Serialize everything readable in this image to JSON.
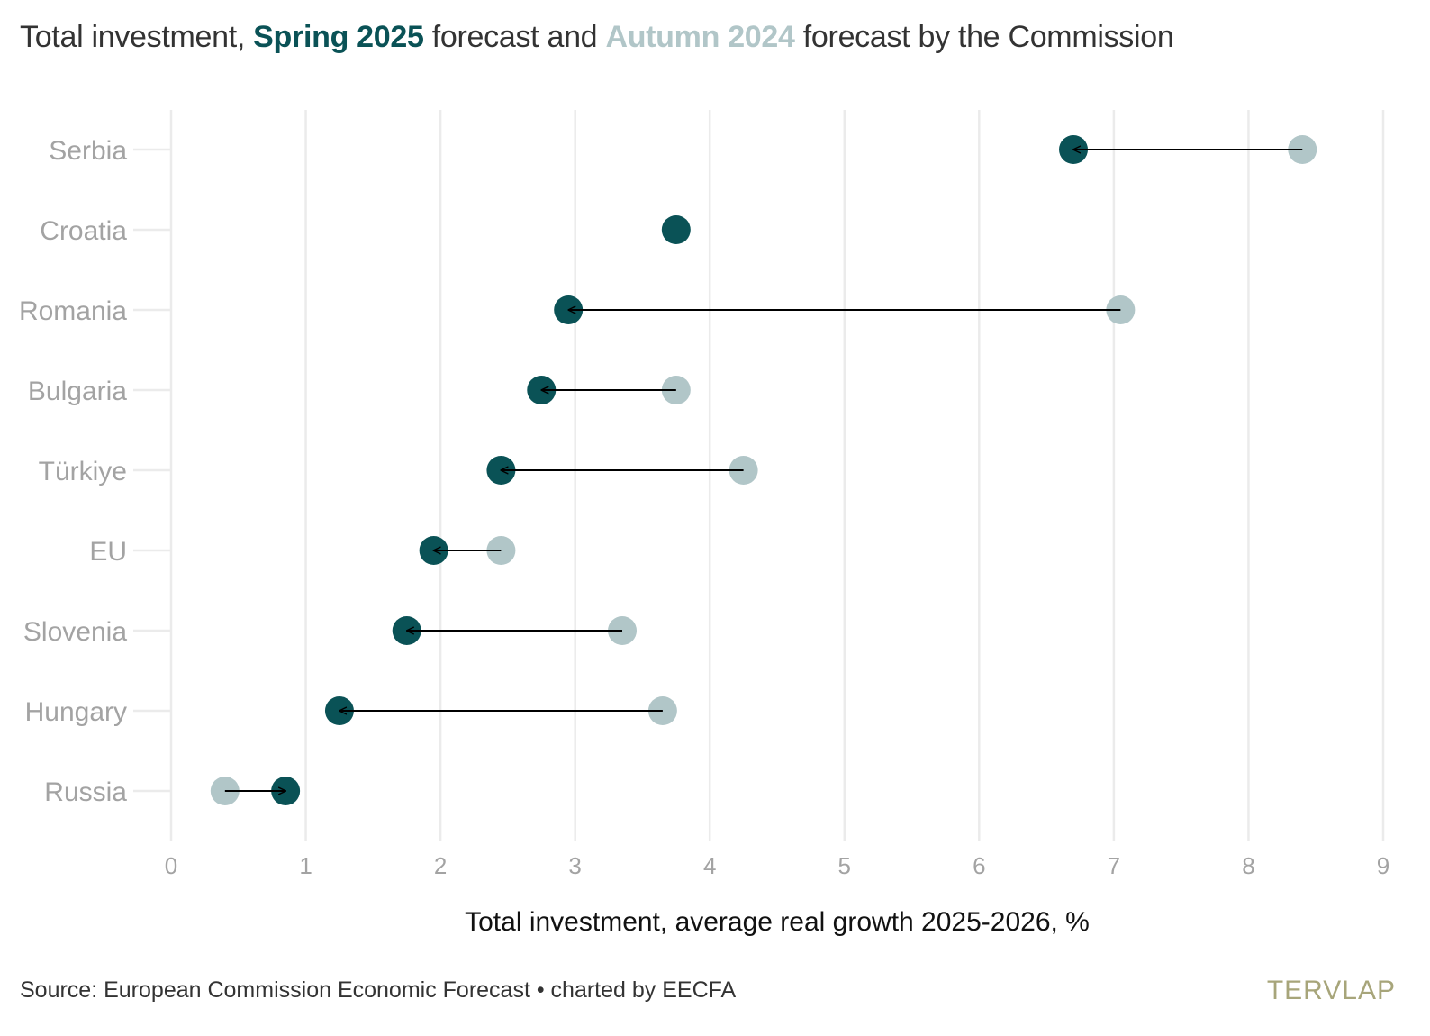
{
  "title": {
    "prefix": "Total investment, ",
    "spring_label": "Spring 2025",
    "middle": " forecast and ",
    "autumn_label": "Autumn 2024",
    "suffix": " forecast by the Commission"
  },
  "source": "Source: European Commission Economic Forecast • charted by EECFA",
  "logo": "TERVLAP",
  "chart_data": {
    "type": "scatter",
    "subtype": "dumbbell-arrow",
    "title": "Total investment, Spring 2025 forecast and Autumn 2024 forecast by the Commission",
    "xlabel": "Total investment, average real growth 2025-2026, %",
    "ylabel": "",
    "xlim": [
      0,
      9
    ],
    "xticks": [
      0,
      1,
      2,
      3,
      4,
      5,
      6,
      7,
      8,
      9
    ],
    "grid": "vertical",
    "categories": [
      "Serbia",
      "Croatia",
      "Romania",
      "Bulgaria",
      "Türkiye",
      "EU",
      "Slovenia",
      "Hungary",
      "Russia"
    ],
    "series": [
      {
        "name": "Autumn 2024",
        "color": "#b1c6c8",
        "values": [
          8.4,
          null,
          7.05,
          3.75,
          4.25,
          2.45,
          3.35,
          3.65,
          0.4
        ]
      },
      {
        "name": "Spring 2025",
        "color": "#0a5256",
        "values": [
          6.7,
          3.75,
          2.95,
          2.75,
          2.45,
          1.95,
          1.75,
          1.25,
          0.85
        ]
      }
    ],
    "arrows": "from Autumn 2024 to Spring 2025"
  }
}
